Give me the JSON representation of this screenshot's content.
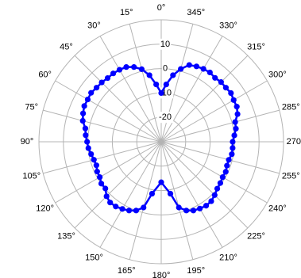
{
  "chart_data": {
    "type": "polar-line",
    "angle_direction": "counterclockwise",
    "zero_angle_position": "top",
    "radial_axis": {
      "min": -30,
      "max": 20,
      "ring_values": [
        -20,
        -10,
        0,
        10,
        20
      ],
      "tick_labels": [
        {
          "value": -20,
          "label": "-20"
        },
        {
          "value": -10,
          "label": "-10"
        },
        {
          "value": 0,
          "label": "0"
        },
        {
          "value": 10,
          "label": "10"
        }
      ]
    },
    "angle_ticks": [
      {
        "angle": 0,
        "label": "0°"
      },
      {
        "angle": 15,
        "label": "15°"
      },
      {
        "angle": 30,
        "label": "30°"
      },
      {
        "angle": 45,
        "label": "45°"
      },
      {
        "angle": 60,
        "label": "60°"
      },
      {
        "angle": 75,
        "label": "75°"
      },
      {
        "angle": 90,
        "label": "90°"
      },
      {
        "angle": 105,
        "label": "105°"
      },
      {
        "angle": 120,
        "label": "120°"
      },
      {
        "angle": 135,
        "label": "135°"
      },
      {
        "angle": 150,
        "label": "150°"
      },
      {
        "angle": 165,
        "label": "165°"
      },
      {
        "angle": 180,
        "label": "180°"
      },
      {
        "angle": 195,
        "label": "195°"
      },
      {
        "angle": 210,
        "label": "210°"
      },
      {
        "angle": 225,
        "label": "225°"
      },
      {
        "angle": 240,
        "label": "240°"
      },
      {
        "angle": 255,
        "label": "255°"
      },
      {
        "angle": 270,
        "label": "270°"
      },
      {
        "angle": 285,
        "label": "285°"
      },
      {
        "angle": 300,
        "label": "300°"
      },
      {
        "angle": 315,
        "label": "315°"
      },
      {
        "angle": 330,
        "label": "330°"
      },
      {
        "angle": 345,
        "label": "345°"
      }
    ],
    "grid": true,
    "series": [
      {
        "color": "#0000ff",
        "marker": "circle",
        "points": [
          {
            "angle": 0,
            "value": -10
          },
          {
            "angle": 5,
            "value": -6.4
          },
          {
            "angle": 10,
            "value": -2.3
          },
          {
            "angle": 15,
            "value": 0.8
          },
          {
            "angle": 20,
            "value": 2.6
          },
          {
            "angle": 25,
            "value": 3.8
          },
          {
            "angle": 30,
            "value": 4.1
          },
          {
            "angle": 35,
            "value": 4.2
          },
          {
            "angle": 40,
            "value": 4.1
          },
          {
            "angle": 45,
            "value": 4.4
          },
          {
            "angle": 50,
            "value": 4.5
          },
          {
            "angle": 55,
            "value": 5.0
          },
          {
            "angle": 60,
            "value": 4.7
          },
          {
            "angle": 65,
            "value": 4.7
          },
          {
            "angle": 70,
            "value": 4.0
          },
          {
            "angle": 75,
            "value": 3.2
          },
          {
            "angle": 80,
            "value": 1.5
          },
          {
            "angle": 85,
            "value": 1.0
          },
          {
            "angle": 90,
            "value": 0.3
          },
          {
            "angle": 95,
            "value": -0.1
          },
          {
            "angle": 100,
            "value": -0.9
          },
          {
            "angle": 105,
            "value": -1.5
          },
          {
            "angle": 110,
            "value": -1.8
          },
          {
            "angle": 115,
            "value": -1.1
          },
          {
            "angle": 120,
            "value": -1.0
          },
          {
            "angle": 125,
            "value": -0.1
          },
          {
            "angle": 130,
            "value": -0.2
          },
          {
            "angle": 135,
            "value": 1.6
          },
          {
            "angle": 140,
            "value": 2.5
          },
          {
            "angle": 145,
            "value": 2.4
          },
          {
            "angle": 150,
            "value": 1.8
          },
          {
            "angle": 155,
            "value": 1.1
          },
          {
            "angle": 160,
            "value": 0.0
          },
          {
            "angle": 165,
            "value": -2.1
          },
          {
            "angle": 170,
            "value": -8.4
          },
          {
            "angle": 180,
            "value": -13.4
          },
          {
            "angle": 190,
            "value": -8.4
          },
          {
            "angle": 195,
            "value": -2.1
          },
          {
            "angle": 200,
            "value": 0.0
          },
          {
            "angle": 205,
            "value": 1.1
          },
          {
            "angle": 210,
            "value": 1.6
          },
          {
            "angle": 215,
            "value": 2.0
          },
          {
            "angle": 220,
            "value": 1.8
          },
          {
            "angle": 225,
            "value": 0.9
          },
          {
            "angle": 230,
            "value": -0.1
          },
          {
            "angle": 235,
            "value": -0.5
          },
          {
            "angle": 240,
            "value": -1.0
          },
          {
            "angle": 245,
            "value": -0.9
          },
          {
            "angle": 250,
            "value": -1.4
          },
          {
            "angle": 255,
            "value": -1.4
          },
          {
            "angle": 260,
            "value": -0.7
          },
          {
            "angle": 265,
            "value": -0.7
          },
          {
            "angle": 270,
            "value": -0.8
          },
          {
            "angle": 275,
            "value": 0.0
          },
          {
            "angle": 280,
            "value": 1.0
          },
          {
            "angle": 285,
            "value": 1.3
          },
          {
            "angle": 290,
            "value": 3.2
          },
          {
            "angle": 295,
            "value": 4.1
          },
          {
            "angle": 300,
            "value": 4.2
          },
          {
            "angle": 305,
            "value": 4.8
          },
          {
            "angle": 310,
            "value": 4.5
          },
          {
            "angle": 315,
            "value": 4.6
          },
          {
            "angle": 320,
            "value": 4.2
          },
          {
            "angle": 325,
            "value": 4.7
          },
          {
            "angle": 330,
            "value": 4.5
          },
          {
            "angle": 335,
            "value": 4.1
          },
          {
            "angle": 340,
            "value": 3.5
          },
          {
            "angle": 345,
            "value": 0.9
          },
          {
            "angle": 350,
            "value": -2.3
          },
          {
            "angle": 355,
            "value": -6.4
          },
          {
            "angle": 360,
            "value": -10
          }
        ]
      }
    ]
  }
}
